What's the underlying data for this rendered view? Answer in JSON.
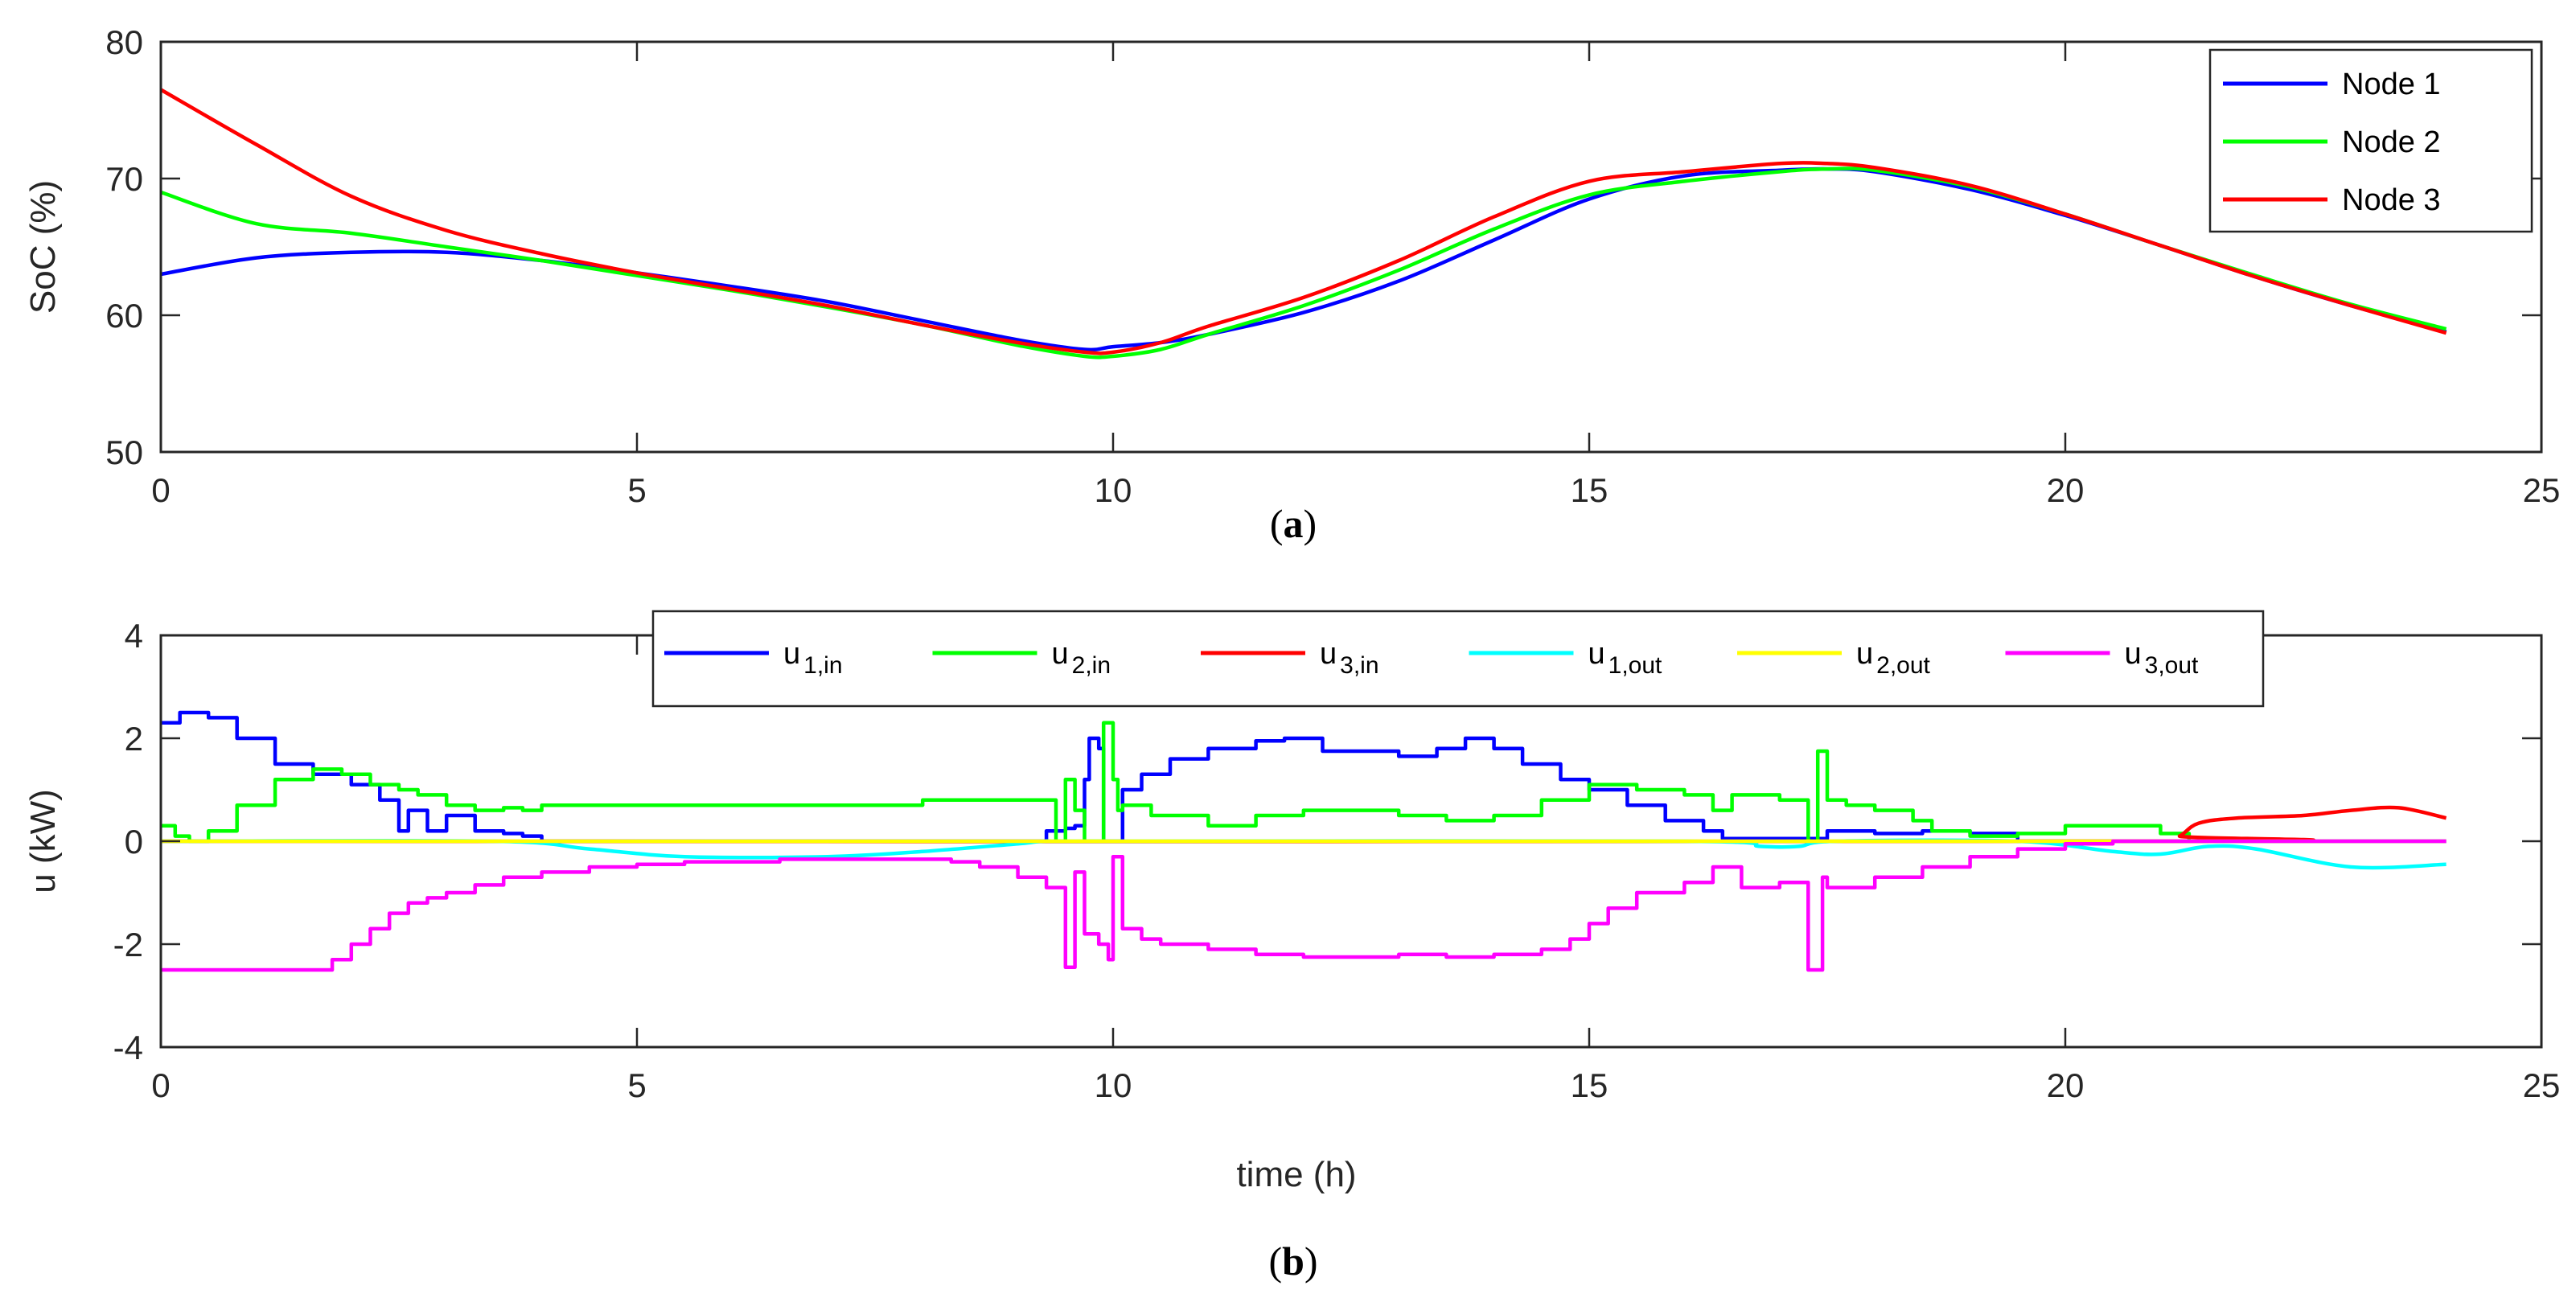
{
  "chart_data": [
    {
      "type": "line",
      "panel": "a",
      "caption": "a",
      "xlabel": "",
      "ylabel": "SoC  (%)",
      "xlim": [
        0,
        25
      ],
      "ylim": [
        50,
        80
      ],
      "xticks": [
        0,
        5,
        10,
        15,
        20,
        25
      ],
      "yticks": [
        50,
        60,
        70,
        80
      ],
      "legend_position": "top-right",
      "series": [
        {
          "name": "Node 1",
          "color": "#0000ff",
          "x": [
            0,
            1,
            2,
            3,
            4,
            5,
            6,
            7,
            8,
            9,
            9.7,
            10,
            10.5,
            11,
            12,
            13,
            14,
            15,
            16,
            17,
            17.5,
            18,
            19,
            20,
            21,
            22,
            23,
            24
          ],
          "y": [
            63,
            64.2,
            64.6,
            64.6,
            64,
            63.1,
            62.1,
            61,
            59.6,
            58.2,
            57.5,
            57.7,
            58,
            58.6,
            60.2,
            62.5,
            65.5,
            68.5,
            70.2,
            70.6,
            70.7,
            70.5,
            69.2,
            67.3,
            65.1,
            62.8,
            60.7,
            58.8
          ]
        },
        {
          "name": "Node 2",
          "color": "#00ff00",
          "x": [
            0,
            1,
            2,
            3,
            4,
            5,
            6,
            7,
            8,
            9,
            9.7,
            10,
            10.5,
            11,
            12,
            13,
            14,
            15,
            16,
            17,
            17.5,
            18,
            19,
            20,
            21,
            22,
            23,
            24
          ],
          "y": [
            69,
            66.7,
            66,
            65,
            64,
            62.9,
            61.8,
            60.6,
            59.3,
            57.8,
            57,
            57,
            57.5,
            58.6,
            60.7,
            63.3,
            66.3,
            68.8,
            69.8,
            70.5,
            70.7,
            70.6,
            69.4,
            67.4,
            65.1,
            62.9,
            60.8,
            59
          ]
        },
        {
          "name": "Node 3",
          "color": "#ff0000",
          "x": [
            0,
            1,
            2,
            3,
            4,
            5,
            6,
            7,
            8,
            9,
            9.7,
            10,
            10.5,
            11,
            12,
            13,
            14,
            15,
            16,
            17,
            17.5,
            18,
            19,
            20,
            21,
            22,
            23,
            24
          ],
          "y": [
            76.5,
            72.5,
            68.7,
            66.2,
            64.5,
            63.1,
            61.9,
            60.7,
            59.3,
            58,
            57.3,
            57.3,
            58,
            59.2,
            61.3,
            64,
            67.2,
            69.8,
            70.5,
            71.1,
            71.1,
            70.8,
            69.5,
            67.4,
            65.1,
            62.8,
            60.7,
            58.7
          ]
        }
      ]
    },
    {
      "type": "line",
      "panel": "b",
      "caption": "b",
      "xlabel": "time (h)",
      "ylabel": "u  (kW)",
      "xlim": [
        0,
        25
      ],
      "ylim": [
        -4,
        4
      ],
      "xticks": [
        0,
        5,
        10,
        15,
        20,
        25
      ],
      "yticks": [
        -4,
        -2,
        0,
        2,
        4
      ],
      "legend_position": "top",
      "series": [
        {
          "name": "u1,in",
          "label_main": "u",
          "label_sub": "1,in",
          "color": "#0000ff",
          "step": true,
          "x": [
            0,
            0.2,
            0.5,
            0.8,
            1.2,
            1.6,
            2.0,
            2.3,
            2.5,
            2.6,
            2.8,
            3.0,
            3.3,
            3.6,
            3.8,
            4.0,
            5,
            7,
            9,
            9.3,
            9.5,
            9.6,
            9.7,
            9.75,
            9.85,
            9.9,
            10.0,
            10.1,
            10.3,
            10.6,
            11.0,
            11.5,
            11.8,
            12.2,
            13.0,
            13.4,
            13.7,
            14.0,
            14.3,
            14.7,
            15.0,
            15.4,
            15.8,
            16.2,
            16.4,
            16.8,
            17.2,
            17.5,
            18.0,
            18.5,
            19.0,
            19.5,
            24
          ],
          "y": [
            2.3,
            2.5,
            2.4,
            2.0,
            1.5,
            1.3,
            1.1,
            0.8,
            0.2,
            0.6,
            0.2,
            0.5,
            0.2,
            0.15,
            0.1,
            0.0,
            0.0,
            0.0,
            0.0,
            0.2,
            0.25,
            0.3,
            1.2,
            2.0,
            1.8,
            0.0,
            0.0,
            1.0,
            1.3,
            1.6,
            1.8,
            1.95,
            2.0,
            1.75,
            1.65,
            1.8,
            2.0,
            1.8,
            1.5,
            1.2,
            1.0,
            0.7,
            0.4,
            0.2,
            0.05,
            0.05,
            0.05,
            0.2,
            0.15,
            0.2,
            0.15,
            0.0,
            0.0
          ]
        },
        {
          "name": "u2,in",
          "label_main": "u",
          "label_sub": "2,in",
          "color": "#00ff00",
          "step": true,
          "x": [
            0,
            0.15,
            0.3,
            0.5,
            0.8,
            1.2,
            1.6,
            1.9,
            2.2,
            2.5,
            2.7,
            3.0,
            3.3,
            3.6,
            3.8,
            4.0,
            5.0,
            6.0,
            7.0,
            8.0,
            9.0,
            9.4,
            9.5,
            9.6,
            9.7,
            9.8,
            9.9,
            10.0,
            10.05,
            10.1,
            10.4,
            11.0,
            11.5,
            12.0,
            12.5,
            13.0,
            13.5,
            14.0,
            14.5,
            15.0,
            15.5,
            16.0,
            16.3,
            16.5,
            17.0,
            17.3,
            17.4,
            17.5,
            17.7,
            18.0,
            18.4,
            18.6,
            19.0,
            19.5,
            20.0,
            20.5,
            21.0,
            21.3,
            21.5
          ],
          "y": [
            0.3,
            0.1,
            0.0,
            0.2,
            0.7,
            1.2,
            1.4,
            1.3,
            1.1,
            1.0,
            0.9,
            0.7,
            0.6,
            0.65,
            0.6,
            0.7,
            0.7,
            0.7,
            0.7,
            0.8,
            0.8,
            0.0,
            1.2,
            0.6,
            0.0,
            0.0,
            2.3,
            1.2,
            0.6,
            0.7,
            0.5,
            0.3,
            0.5,
            0.6,
            0.6,
            0.5,
            0.4,
            0.5,
            0.8,
            1.1,
            1.0,
            0.9,
            0.6,
            0.9,
            0.8,
            0.0,
            1.75,
            0.8,
            0.7,
            0.6,
            0.4,
            0.2,
            0.1,
            0.15,
            0.3,
            0.3,
            0.15,
            0.0,
            0.0
          ]
        },
        {
          "name": "u3,in",
          "label_main": "u",
          "label_sub": "3,in",
          "color": "#ff0000",
          "step": false,
          "x": [
            0,
            21.0,
            21.2,
            21.4,
            21.8,
            22.5,
            23.0,
            23.5,
            24
          ],
          "y": [
            0,
            0,
            0.1,
            0.35,
            0.45,
            0.5,
            0.6,
            0.65,
            0.45
          ]
        },
        {
          "name": "u1,out",
          "label_main": "u",
          "label_sub": "1,out",
          "color": "#00ffff",
          "step": false,
          "x": [
            0,
            3.5,
            4.5,
            5.5,
            7.0,
            8.0,
            9.0,
            9.3,
            10,
            16,
            16.8,
            17.2,
            17.6,
            19.5,
            20.5,
            21.0,
            21.5,
            22.0,
            23.0,
            24
          ],
          "y": [
            0,
            0,
            -0.15,
            -0.3,
            -0.3,
            -0.2,
            -0.05,
            0,
            0,
            0,
            -0.1,
            -0.1,
            0,
            0,
            -0.2,
            -0.25,
            -0.1,
            -0.15,
            -0.5,
            -0.45
          ]
        },
        {
          "name": "u2,out",
          "label_main": "u",
          "label_sub": "2,out",
          "color": "#ffff00",
          "step": false,
          "x": [
            0,
            24
          ],
          "y": [
            0,
            0
          ]
        },
        {
          "name": "u3,out",
          "label_main": "u",
          "label_sub": "3,out",
          "color": "#ff00ff",
          "step": true,
          "x": [
            0,
            1.8,
            2.0,
            2.2,
            2.4,
            2.6,
            2.8,
            3.0,
            3.3,
            3.6,
            4.0,
            4.5,
            5.0,
            5.5,
            6.5,
            7.5,
            8.3,
            8.6,
            9.0,
            9.3,
            9.5,
            9.6,
            9.7,
            9.85,
            9.95,
            10.0,
            10.1,
            10.3,
            10.5,
            11.0,
            11.5,
            12.0,
            13.0,
            13.5,
            14.0,
            14.5,
            14.8,
            15.0,
            15.2,
            15.5,
            16.0,
            16.3,
            16.6,
            17.0,
            17.3,
            17.45,
            17.5,
            18.0,
            18.5,
            19.0,
            19.5,
            20.0,
            20.5,
            21.0,
            24
          ],
          "y": [
            -2.5,
            -2.3,
            -2.0,
            -1.7,
            -1.4,
            -1.2,
            -1.1,
            -1.0,
            -0.85,
            -0.7,
            -0.6,
            -0.5,
            -0.45,
            -0.4,
            -0.35,
            -0.35,
            -0.4,
            -0.5,
            -0.7,
            -0.9,
            -2.45,
            -0.6,
            -1.8,
            -2.0,
            -2.3,
            -0.3,
            -1.7,
            -1.9,
            -2.0,
            -2.1,
            -2.2,
            -2.25,
            -2.2,
            -2.25,
            -2.2,
            -2.1,
            -1.9,
            -1.6,
            -1.3,
            -1.0,
            -0.8,
            -0.5,
            -0.9,
            -0.8,
            -2.5,
            -0.7,
            -0.9,
            -0.7,
            -0.5,
            -0.3,
            -0.15,
            -0.05,
            0.0,
            0.0,
            0.0
          ]
        }
      ]
    }
  ]
}
